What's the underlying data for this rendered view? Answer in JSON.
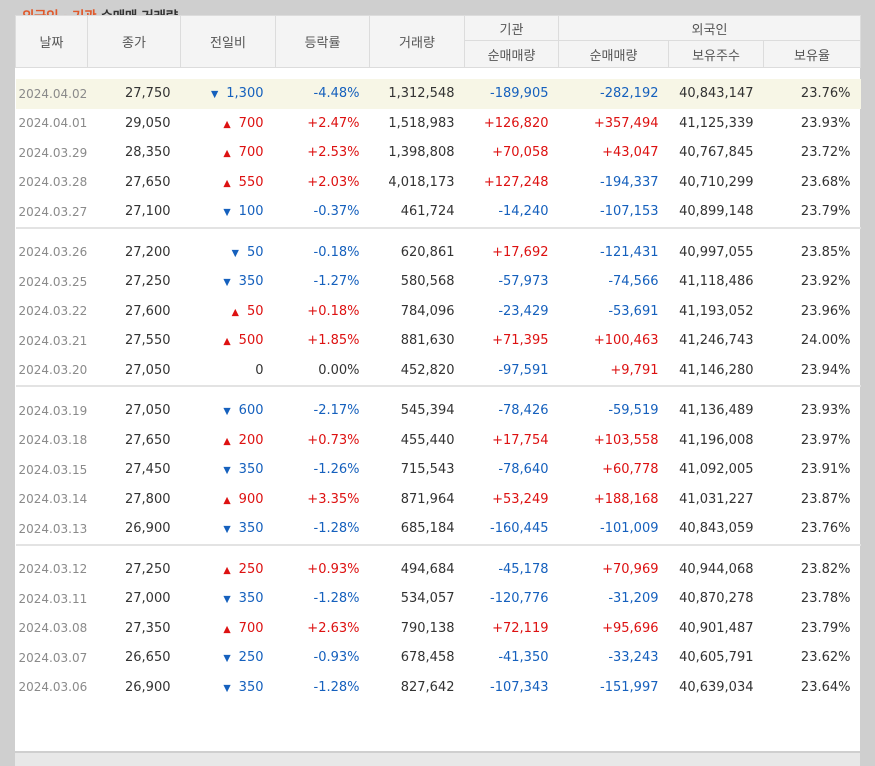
{
  "title": {
    "part1": "외국인 · 기관",
    "part2": "순매매 거래량"
  },
  "headers": {
    "date": "날짜",
    "close": "종가",
    "change": "전일비",
    "rate": "등락률",
    "volume": "거래량",
    "institution": "기관",
    "inst_net": "순매매량",
    "foreign": "외국인",
    "foreign_net": "순매매량",
    "shares_held": "보유주수",
    "hold_ratio": "보유율"
  },
  "colors": {
    "up": "#dd1111",
    "down": "#1560bd",
    "accent": "#e0582a"
  },
  "groups": [
    [
      {
        "date": "2024.04.02",
        "close": "27,750",
        "dir": "down",
        "change": "1,300",
        "rate": "-4.48%",
        "volume": "1,312,548",
        "inst": "-189,905",
        "foreign": "-282,192",
        "held": "40,843,147",
        "ratio": "23.76%",
        "highlight": true
      },
      {
        "date": "2024.04.01",
        "close": "29,050",
        "dir": "up",
        "change": "700",
        "rate": "+2.47%",
        "volume": "1,518,983",
        "inst": "+126,820",
        "foreign": "+357,494",
        "held": "41,125,339",
        "ratio": "23.93%"
      },
      {
        "date": "2024.03.29",
        "close": "28,350",
        "dir": "up",
        "change": "700",
        "rate": "+2.53%",
        "volume": "1,398,808",
        "inst": "+70,058",
        "foreign": "+43,047",
        "held": "40,767,845",
        "ratio": "23.72%"
      },
      {
        "date": "2024.03.28",
        "close": "27,650",
        "dir": "up",
        "change": "550",
        "rate": "+2.03%",
        "volume": "4,018,173",
        "inst": "+127,248",
        "foreign": "-194,337",
        "held": "40,710,299",
        "ratio": "23.68%"
      },
      {
        "date": "2024.03.27",
        "close": "27,100",
        "dir": "down",
        "change": "100",
        "rate": "-0.37%",
        "volume": "461,724",
        "inst": "-14,240",
        "foreign": "-107,153",
        "held": "40,899,148",
        "ratio": "23.79%"
      }
    ],
    [
      {
        "date": "2024.03.26",
        "close": "27,200",
        "dir": "down",
        "change": "50",
        "rate": "-0.18%",
        "volume": "620,861",
        "inst": "+17,692",
        "foreign": "-121,431",
        "held": "40,997,055",
        "ratio": "23.85%"
      },
      {
        "date": "2024.03.25",
        "close": "27,250",
        "dir": "down",
        "change": "350",
        "rate": "-1.27%",
        "volume": "580,568",
        "inst": "-57,973",
        "foreign": "-74,566",
        "held": "41,118,486",
        "ratio": "23.92%"
      },
      {
        "date": "2024.03.22",
        "close": "27,600",
        "dir": "up",
        "change": "50",
        "rate": "+0.18%",
        "volume": "784,096",
        "inst": "-23,429",
        "foreign": "-53,691",
        "held": "41,193,052",
        "ratio": "23.96%"
      },
      {
        "date": "2024.03.21",
        "close": "27,550",
        "dir": "up",
        "change": "500",
        "rate": "+1.85%",
        "volume": "881,630",
        "inst": "+71,395",
        "foreign": "+100,463",
        "held": "41,246,743",
        "ratio": "24.00%"
      },
      {
        "date": "2024.03.20",
        "close": "27,050",
        "dir": "none",
        "change": "0",
        "rate": "0.00%",
        "volume": "452,820",
        "inst": "-97,591",
        "foreign": "+9,791",
        "held": "41,146,280",
        "ratio": "23.94%"
      }
    ],
    [
      {
        "date": "2024.03.19",
        "close": "27,050",
        "dir": "down",
        "change": "600",
        "rate": "-2.17%",
        "volume": "545,394",
        "inst": "-78,426",
        "foreign": "-59,519",
        "held": "41,136,489",
        "ratio": "23.93%"
      },
      {
        "date": "2024.03.18",
        "close": "27,650",
        "dir": "up",
        "change": "200",
        "rate": "+0.73%",
        "volume": "455,440",
        "inst": "+17,754",
        "foreign": "+103,558",
        "held": "41,196,008",
        "ratio": "23.97%"
      },
      {
        "date": "2024.03.15",
        "close": "27,450",
        "dir": "down",
        "change": "350",
        "rate": "-1.26%",
        "volume": "715,543",
        "inst": "-78,640",
        "foreign": "+60,778",
        "held": "41,092,005",
        "ratio": "23.91%"
      },
      {
        "date": "2024.03.14",
        "close": "27,800",
        "dir": "up",
        "change": "900",
        "rate": "+3.35%",
        "volume": "871,964",
        "inst": "+53,249",
        "foreign": "+188,168",
        "held": "41,031,227",
        "ratio": "23.87%"
      },
      {
        "date": "2024.03.13",
        "close": "26,900",
        "dir": "down",
        "change": "350",
        "rate": "-1.28%",
        "volume": "685,184",
        "inst": "-160,445",
        "foreign": "-101,009",
        "held": "40,843,059",
        "ratio": "23.76%"
      }
    ],
    [
      {
        "date": "2024.03.12",
        "close": "27,250",
        "dir": "up",
        "change": "250",
        "rate": "+0.93%",
        "volume": "494,684",
        "inst": "-45,178",
        "foreign": "+70,969",
        "held": "40,944,068",
        "ratio": "23.82%"
      },
      {
        "date": "2024.03.11",
        "close": "27,000",
        "dir": "down",
        "change": "350",
        "rate": "-1.28%",
        "volume": "534,057",
        "inst": "-120,776",
        "foreign": "-31,209",
        "held": "40,870,278",
        "ratio": "23.78%"
      },
      {
        "date": "2024.03.08",
        "close": "27,350",
        "dir": "up",
        "change": "700",
        "rate": "+2.63%",
        "volume": "790,138",
        "inst": "+72,119",
        "foreign": "+95,696",
        "held": "40,901,487",
        "ratio": "23.79%"
      },
      {
        "date": "2024.03.07",
        "close": "26,650",
        "dir": "down",
        "change": "250",
        "rate": "-0.93%",
        "volume": "678,458",
        "inst": "-41,350",
        "foreign": "-33,243",
        "held": "40,605,791",
        "ratio": "23.62%"
      },
      {
        "date": "2024.03.06",
        "close": "26,900",
        "dir": "down",
        "change": "350",
        "rate": "-1.28%",
        "volume": "827,642",
        "inst": "-107,343",
        "foreign": "-151,997",
        "held": "40,639,034",
        "ratio": "23.64%"
      }
    ]
  ]
}
